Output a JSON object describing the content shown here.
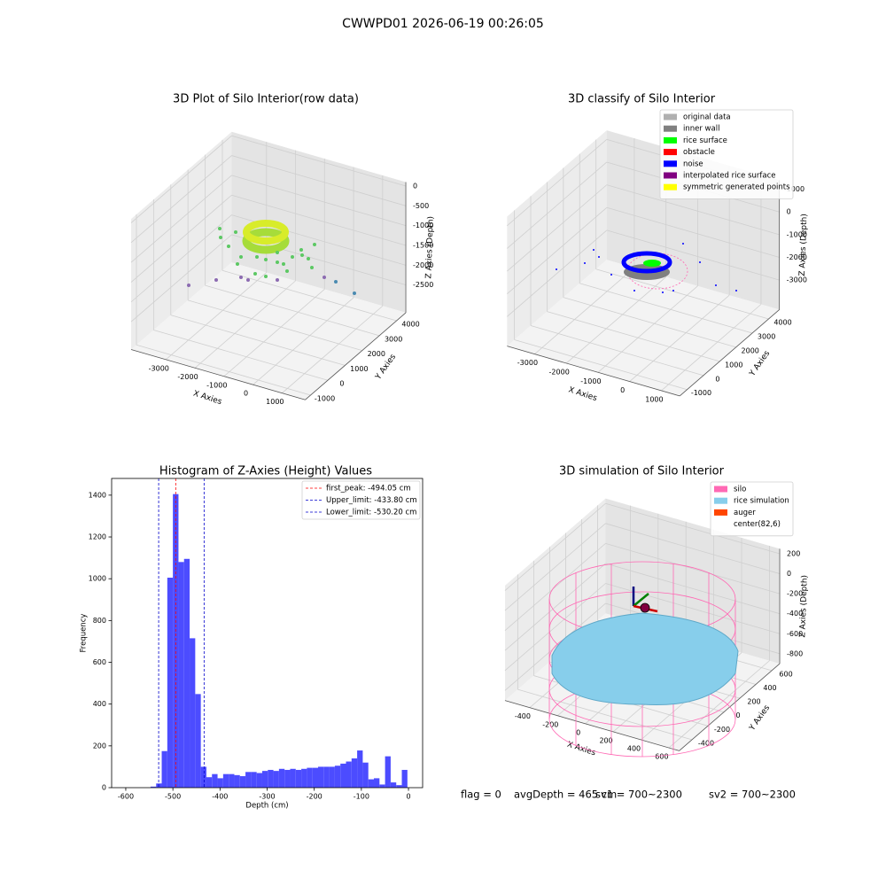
{
  "title": "CWWPD01 2026-06-19 00:26:05",
  "chart_data": [
    {
      "type": "scatter3d",
      "title": "3D Plot of Silo Interior(row data)",
      "xlabel": "X Axies",
      "ylabel": "Y Axies",
      "zlabel": "Z Axies (Depth)",
      "xlim": [
        -4200,
        1800
      ],
      "ylim": [
        -1310,
        4540
      ],
      "zlim": [
        -3200,
        100
      ],
      "xticks": [
        -3000,
        -2000,
        -1000,
        0,
        1000
      ],
      "yticks": [
        -1000,
        0,
        1000,
        2000,
        3000,
        4000
      ],
      "zticks": [
        0,
        -500,
        -1000,
        -1500,
        -2000,
        -2500
      ]
    },
    {
      "type": "scatter3d",
      "title": "3D classify of Silo Interior",
      "xlabel": "X Axies",
      "ylabel": "Y Axies",
      "zlabel": "Z Axies (Depth)",
      "xlim": [
        -3870,
        1580
      ],
      "ylim": [
        -1450,
        4660
      ],
      "zlim": [
        -4300,
        1400
      ],
      "xticks": [
        -3000,
        -2000,
        -1000,
        0,
        1000
      ],
      "yticks": [
        -1000,
        0,
        1000,
        2000,
        3000,
        4000
      ],
      "zticks": [
        1000,
        0,
        -1000,
        -2000,
        -3000
      ],
      "legend": "upper right",
      "series": [
        {
          "name": "original data",
          "color": "#b0b0b0"
        },
        {
          "name": "inner wall",
          "color": "#808080"
        },
        {
          "name": "rice surface",
          "color": "#00ff00"
        },
        {
          "name": "obstacle",
          "color": "#ff0000"
        },
        {
          "name": "noise",
          "color": "#0000ff"
        },
        {
          "name": "interpolated rice surface",
          "color": "#800080"
        },
        {
          "name": "symmetric generated points",
          "color": "#ffff00"
        }
      ]
    },
    {
      "type": "histogram",
      "title": "Histogram of Z-Axies (Height) Values",
      "xlabel": "Depth (cm)",
      "ylabel": "Frequency",
      "color": "#4c4cff",
      "bins": [
        -594.8,
        -582.95,
        -571.1,
        -559.25,
        -547.4,
        -535.55,
        -523.7,
        -511.85,
        -500,
        -488.15,
        -476.3,
        -464.45,
        -452.6,
        -440.75,
        -428.9,
        -417.05,
        -405.2,
        -393.35,
        -381.5,
        -369.65,
        -357.8,
        -345.95,
        -334.1,
        -322.25,
        -310.4,
        -298.55,
        -286.7,
        -274.85,
        -263,
        -251.15,
        -239.3,
        -227.45,
        -215.6,
        -203.75,
        -191.9,
        -180.05,
        -168.2,
        -156.35,
        -144.5,
        -132.65,
        -120.8,
        -108.95,
        -97.1,
        -85.25,
        -73.4,
        -61.55,
        -49.7,
        -37.85,
        -26,
        -14.15,
        -2.3
      ],
      "values": [
        0,
        0,
        0,
        0,
        5,
        20,
        175,
        1005,
        1405,
        1080,
        1095,
        715,
        448,
        100,
        50,
        65,
        45,
        65,
        65,
        60,
        55,
        75,
        75,
        70,
        80,
        85,
        80,
        90,
        85,
        90,
        85,
        90,
        95,
        95,
        100,
        100,
        100,
        105,
        115,
        125,
        140,
        178,
        120,
        40,
        45,
        15,
        150,
        25,
        12,
        85
      ],
      "xlim": [
        -630,
        30
      ],
      "ylim": [
        0,
        1480
      ],
      "xticks": [
        -600,
        -500,
        -400,
        -300,
        -200,
        -100,
        0
      ],
      "yticks": [
        0,
        200,
        400,
        600,
        800,
        1000,
        1200,
        1400
      ],
      "legend": "upper right",
      "vlines": [
        {
          "name": "first_peak: -494.05 cm",
          "value": -494.05,
          "color": "#ff0000"
        },
        {
          "name": "Upper_limit: -433.80 cm",
          "value": -433.8,
          "color": "#0000cc"
        },
        {
          "name": "Lower_limit: -530.20 cm",
          "value": -530.2,
          "color": "#0000cc"
        }
      ]
    },
    {
      "type": "scatter3d",
      "title": "3D simulation of Silo Interior",
      "xlabel": "X Axies",
      "ylabel": "Y Axies",
      "zlabel": "Z Axies (Depth)",
      "xlim": [
        -578,
        674
      ],
      "ylim": [
        -560,
        700
      ],
      "zlim": [
        -900,
        250
      ],
      "xticks": [
        -400,
        -200,
        0,
        200,
        400,
        600
      ],
      "yticks": [
        -400,
        -200,
        0,
        200,
        400,
        600
      ],
      "zticks": [
        200,
        0,
        -200,
        -400,
        -600,
        -800
      ],
      "legend": "upper right",
      "series": [
        {
          "name": "silo",
          "color": "#ff69b4"
        },
        {
          "name": "rice simulation",
          "color": "#87ceeb"
        },
        {
          "name": "auger",
          "color": "#ff4500"
        },
        {
          "name": "center(82,6)",
          "color": "#ffffff"
        }
      ]
    }
  ],
  "footer": [
    "flag = 0",
    "avgDepth = 465 cm",
    "sv1 = 700~2300",
    "sv2 = 700~2300"
  ]
}
